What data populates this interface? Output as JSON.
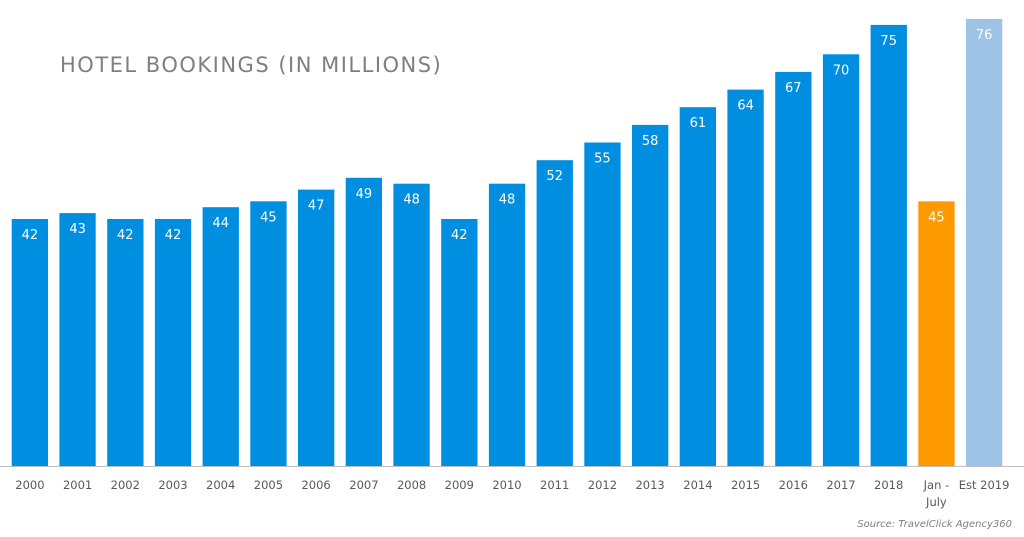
{
  "chart_data": {
    "type": "bar",
    "title": "HOTEL BOOKINGS (IN MILLIONS)",
    "source": "Source: TravelClick Agency360",
    "categories": [
      "2000",
      "2001",
      "2002",
      "2003",
      "2004",
      "2005",
      "2006",
      "2007",
      "2008",
      "2009",
      "2010",
      "2011",
      "2012",
      "2013",
      "2014",
      "2015",
      "2016",
      "2017",
      "2018",
      "Jan - July",
      "Est 2019"
    ],
    "tick_lines": [
      [
        "2000"
      ],
      [
        "2001"
      ],
      [
        "2002"
      ],
      [
        "2003"
      ],
      [
        "2004"
      ],
      [
        "2005"
      ],
      [
        "2006"
      ],
      [
        "2007"
      ],
      [
        "2008"
      ],
      [
        "2009"
      ],
      [
        "2010"
      ],
      [
        "2011"
      ],
      [
        "2012"
      ],
      [
        "2013"
      ],
      [
        "2014"
      ],
      [
        "2015"
      ],
      [
        "2016"
      ],
      [
        "2017"
      ],
      [
        "2018"
      ],
      [
        "Jan -",
        "July"
      ],
      [
        "Est 2019"
      ]
    ],
    "values": [
      42,
      43,
      42,
      42,
      44,
      45,
      47,
      49,
      48,
      42,
      48,
      52,
      55,
      58,
      61,
      64,
      67,
      70,
      75,
      45,
      76
    ],
    "colors": [
      "#008ee0",
      "#008ee0",
      "#008ee0",
      "#008ee0",
      "#008ee0",
      "#008ee0",
      "#008ee0",
      "#008ee0",
      "#008ee0",
      "#008ee0",
      "#008ee0",
      "#008ee0",
      "#008ee0",
      "#008ee0",
      "#008ee0",
      "#008ee0",
      "#008ee0",
      "#008ee0",
      "#008ee0",
      "#ff9900",
      "#9dc3e6"
    ],
    "ylim": [
      0,
      76
    ],
    "grid": false,
    "legend": "none"
  }
}
